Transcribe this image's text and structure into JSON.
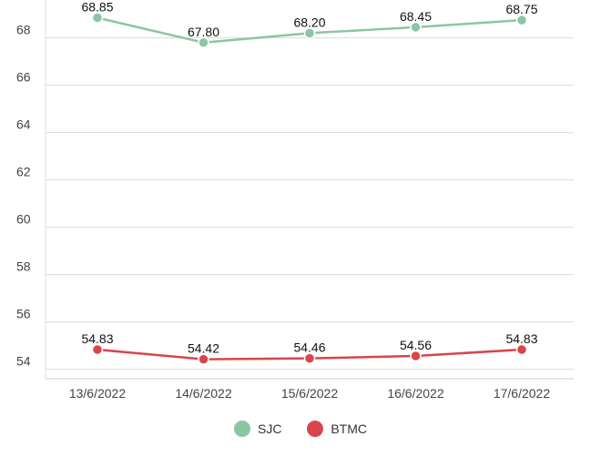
{
  "chart_data": {
    "type": "line",
    "categories": [
      "13/6/2022",
      "14/6/2022",
      "15/6/2022",
      "16/6/2022",
      "17/6/2022"
    ],
    "y_ticks": [
      "54",
      "56",
      "58",
      "60",
      "62",
      "64",
      "66",
      "68"
    ],
    "ylim": [
      53.6,
      69.6
    ],
    "grid": true,
    "legend_position": "bottom-center",
    "series": [
      {
        "name": "SJC",
        "color": "#8cc5a2",
        "values": [
          68.85,
          67.8,
          68.2,
          68.45,
          68.75
        ],
        "labels": [
          "68.85",
          "67.80",
          "68.20",
          "68.45",
          "68.75"
        ]
      },
      {
        "name": "BTMC",
        "color": "#d9454b",
        "values": [
          54.83,
          54.42,
          54.46,
          54.56,
          54.83
        ],
        "labels": [
          "54.83",
          "54.42",
          "54.46",
          "54.56",
          "54.83"
        ]
      }
    ]
  }
}
